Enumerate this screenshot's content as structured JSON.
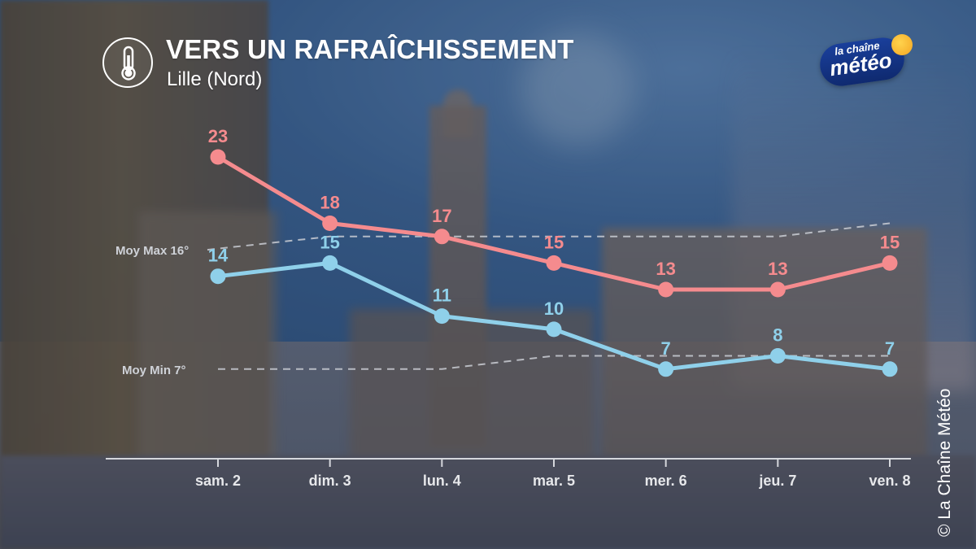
{
  "header": {
    "title": "VERS UN RAFRAÎCHISSEMENT",
    "subtitle": "Lille (Nord)",
    "icon": "thermometer-icon"
  },
  "logo": {
    "line1": "la chaîne",
    "line2": "météo",
    "colors": {
      "pill": "#14348a",
      "sun": "#f7b733"
    }
  },
  "copyright": "© La Chaîne Météo",
  "chart_data": {
    "type": "line",
    "title": "VERS UN RAFRAÎCHISSEMENT",
    "subtitle": "Lille (Nord)",
    "categories": [
      "sam. 2",
      "dim. 3",
      "lun. 4",
      "mar. 5",
      "mer. 6",
      "jeu. 7",
      "ven. 8"
    ],
    "series": [
      {
        "values": [
          23,
          18,
          17,
          15,
          13,
          13,
          15
        ],
        "color": "#f58b8e"
      },
      {
        "values": [
          14,
          15,
          11,
          10,
          7,
          8,
          7
        ],
        "color": "#8fd0ea"
      }
    ],
    "references": [
      {
        "label": "Moy Max 16°",
        "values": [
          16,
          17,
          17,
          17,
          17,
          17,
          18
        ],
        "color": "#c9ccd3"
      },
      {
        "label": "Moy Min 7°",
        "values": [
          7,
          7,
          7,
          8,
          8,
          8,
          8
        ],
        "color": "#c9ccd3"
      }
    ],
    "ylim": [
      5,
      26
    ],
    "grid": false,
    "data_labels": true
  }
}
